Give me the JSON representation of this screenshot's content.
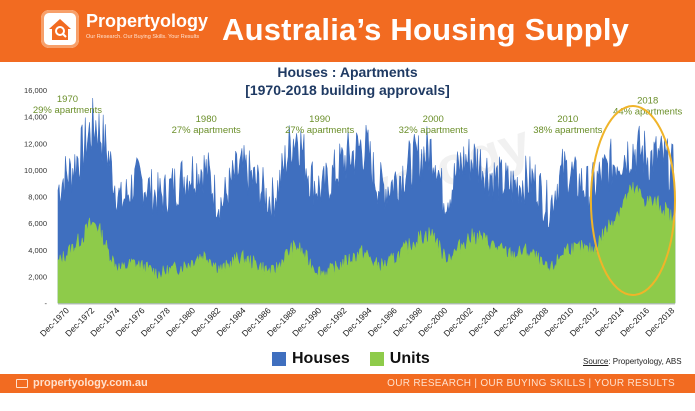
{
  "header": {
    "brand": "Propertyology",
    "tagline": "Our Research. Our Buying Skills. Your Results",
    "title": "Australia’s Housing Supply"
  },
  "footer": {
    "website": "propertyology.com.au",
    "slogan": "OUR RESEARCH | OUR BUYING SKILLS | YOUR RESULTS"
  },
  "source": {
    "label": "Source",
    "text": ": Propertyology, ABS"
  },
  "chart_data": {
    "type": "area",
    "title": "Houses : Apartments",
    "subtitle": "[1970-2018 building approvals]",
    "x_start": "1970-01",
    "x_end": "2018-12",
    "x_tick_labels": [
      "Dec-1970",
      "Dec-1972",
      "Dec-1974",
      "Dec-1976",
      "Dec-1978",
      "Dec-1980",
      "Dec-1982",
      "Dec-1984",
      "Dec-1986",
      "Dec-1988",
      "Dec-1990",
      "Dec-1992",
      "Dec-1994",
      "Dec-1996",
      "Dec-1998",
      "Dec-2000",
      "Dec-2002",
      "Dec-2004",
      "Dec-2006",
      "Dec-2008",
      "Dec-2010",
      "Dec-2012",
      "Dec-2014",
      "Dec-2016",
      "Dec-2018"
    ],
    "y_ticks": [
      0,
      2000,
      4000,
      6000,
      8000,
      10000,
      12000,
      14000,
      16000
    ],
    "y_tick_labels": [
      "-",
      "2,000",
      "4,000",
      "6,000",
      "8,000",
      "10,000",
      "12,000",
      "14,000",
      "16,000"
    ],
    "ylim": [
      0,
      16000
    ],
    "stacked": true,
    "legend_position": "bottom",
    "colors": {
      "houses": "#3f6fbf",
      "units": "#8ecb4a",
      "annotation": "#6b8f2a",
      "circle": "#f0b429"
    },
    "series": [
      {
        "name": "Houses",
        "points": [
          [
            "1970-01",
            8500
          ],
          [
            "1970-07",
            9500
          ],
          [
            "1971-01",
            9800
          ],
          [
            "1971-07",
            10800
          ],
          [
            "1972-01",
            11500
          ],
          [
            "1972-07",
            12800
          ],
          [
            "1973-01",
            13500
          ],
          [
            "1973-07",
            12500
          ],
          [
            "1974-01",
            11000
          ],
          [
            "1974-07",
            9000
          ],
          [
            "1975-01",
            7500
          ],
          [
            "1975-07",
            8200
          ],
          [
            "1976-01",
            9000
          ],
          [
            "1976-07",
            9200
          ],
          [
            "1977-01",
            8800
          ],
          [
            "1977-07",
            8300
          ],
          [
            "1978-01",
            8000
          ],
          [
            "1978-07",
            8200
          ],
          [
            "1979-01",
            8700
          ],
          [
            "1979-07",
            9000
          ],
          [
            "1980-01",
            9500
          ],
          [
            "1980-07",
            9800
          ],
          [
            "1981-01",
            10000
          ],
          [
            "1981-07",
            10200
          ],
          [
            "1982-01",
            9500
          ],
          [
            "1982-07",
            8000
          ],
          [
            "1983-01",
            7500
          ],
          [
            "1983-07",
            8500
          ],
          [
            "1984-01",
            9500
          ],
          [
            "1984-07",
            10000
          ],
          [
            "1985-01",
            9800
          ],
          [
            "1985-07",
            9200
          ],
          [
            "1986-01",
            8800
          ],
          [
            "1986-07",
            8000
          ],
          [
            "1987-01",
            7800
          ],
          [
            "1987-07",
            8800
          ],
          [
            "1988-01",
            10500
          ],
          [
            "1988-07",
            12200
          ],
          [
            "1989-01",
            12800
          ],
          [
            "1989-07",
            11000
          ],
          [
            "1990-01",
            9500
          ],
          [
            "1990-07",
            8800
          ],
          [
            "1991-01",
            8500
          ],
          [
            "1991-07",
            9200
          ],
          [
            "1992-01",
            9800
          ],
          [
            "1992-07",
            10500
          ],
          [
            "1993-01",
            11000
          ],
          [
            "1993-07",
            11200
          ],
          [
            "1994-01",
            11800
          ],
          [
            "1994-07",
            11500
          ],
          [
            "1995-01",
            9800
          ],
          [
            "1995-07",
            8800
          ],
          [
            "1996-01",
            8700
          ],
          [
            "1996-07",
            9000
          ],
          [
            "1997-01",
            9500
          ],
          [
            "1997-07",
            10000
          ],
          [
            "1998-01",
            10500
          ],
          [
            "1998-07",
            10800
          ],
          [
            "1999-01",
            11200
          ],
          [
            "1999-07",
            11500
          ],
          [
            "2000-01",
            11000
          ],
          [
            "2000-07",
            8000
          ],
          [
            "2001-01",
            8200
          ],
          [
            "2001-07",
            9500
          ],
          [
            "2002-01",
            10500
          ],
          [
            "2002-07",
            10800
          ],
          [
            "2003-01",
            10800
          ],
          [
            "2003-07",
            10500
          ],
          [
            "2004-01",
            10000
          ],
          [
            "2004-07",
            9500
          ],
          [
            "2005-01",
            9200
          ],
          [
            "2005-07",
            9000
          ],
          [
            "2006-01",
            8800
          ],
          [
            "2006-07",
            9000
          ],
          [
            "2007-01",
            9200
          ],
          [
            "2007-07",
            9300
          ],
          [
            "2008-01",
            9000
          ],
          [
            "2008-07",
            7800
          ],
          [
            "2009-01",
            7200
          ],
          [
            "2009-07",
            8800
          ],
          [
            "2010-01",
            9800
          ],
          [
            "2010-07",
            10000
          ],
          [
            "2011-01",
            9200
          ],
          [
            "2011-07",
            9000
          ],
          [
            "2012-01",
            8600
          ],
          [
            "2012-07",
            8800
          ],
          [
            "2013-01",
            9500
          ],
          [
            "2013-07",
            10000
          ],
          [
            "2014-01",
            10500
          ],
          [
            "2014-07",
            11000
          ],
          [
            "2015-01",
            11200
          ],
          [
            "2015-07",
            11600
          ],
          [
            "2016-01",
            11400
          ],
          [
            "2016-07",
            11200
          ],
          [
            "2017-01",
            10800
          ],
          [
            "2017-07",
            11000
          ],
          [
            "2018-01",
            10800
          ],
          [
            "2018-07",
            10200
          ],
          [
            "2018-12",
            9800
          ]
        ]
      },
      {
        "name": "Units",
        "points": [
          [
            "1970-01",
            3000
          ],
          [
            "1970-07",
            3500
          ],
          [
            "1971-01",
            4000
          ],
          [
            "1971-07",
            4500
          ],
          [
            "1972-01",
            5000
          ],
          [
            "1972-07",
            5800
          ],
          [
            "1973-01",
            6000
          ],
          [
            "1973-07",
            5000
          ],
          [
            "1974-01",
            3800
          ],
          [
            "1974-07",
            3000
          ],
          [
            "1975-01",
            2500
          ],
          [
            "1975-07",
            2800
          ],
          [
            "1976-01",
            3000
          ],
          [
            "1976-07",
            2800
          ],
          [
            "1977-01",
            2600
          ],
          [
            "1977-07",
            2400
          ],
          [
            "1978-01",
            2200
          ],
          [
            "1978-07",
            2300
          ],
          [
            "1979-01",
            2500
          ],
          [
            "1979-07",
            2600
          ],
          [
            "1980-01",
            2800
          ],
          [
            "1980-07",
            3000
          ],
          [
            "1981-01",
            3400
          ],
          [
            "1981-07",
            3600
          ],
          [
            "1982-01",
            3400
          ],
          [
            "1982-07",
            2800
          ],
          [
            "1983-01",
            2500
          ],
          [
            "1983-07",
            2800
          ],
          [
            "1984-01",
            3200
          ],
          [
            "1984-07",
            3400
          ],
          [
            "1985-01",
            3200
          ],
          [
            "1985-07",
            3000
          ],
          [
            "1986-01",
            2800
          ],
          [
            "1986-07",
            2500
          ],
          [
            "1987-01",
            2300
          ],
          [
            "1987-07",
            2800
          ],
          [
            "1988-01",
            3500
          ],
          [
            "1988-07",
            4000
          ],
          [
            "1989-01",
            4200
          ],
          [
            "1989-07",
            3600
          ],
          [
            "1990-01",
            3000
          ],
          [
            "1990-07",
            2500
          ],
          [
            "1991-01",
            2300
          ],
          [
            "1991-07",
            2400
          ],
          [
            "1992-01",
            2600
          ],
          [
            "1992-07",
            2900
          ],
          [
            "1993-01",
            3200
          ],
          [
            "1993-07",
            3500
          ],
          [
            "1994-01",
            3800
          ],
          [
            "1994-07",
            3600
          ],
          [
            "1995-01",
            3000
          ],
          [
            "1995-07",
            2800
          ],
          [
            "1996-01",
            2900
          ],
          [
            "1996-07",
            3200
          ],
          [
            "1997-01",
            3600
          ],
          [
            "1997-07",
            4000
          ],
          [
            "1998-01",
            4400
          ],
          [
            "1998-07",
            4800
          ],
          [
            "1999-01",
            5000
          ],
          [
            "1999-07",
            5200
          ],
          [
            "2000-01",
            4800
          ],
          [
            "2000-07",
            3500
          ],
          [
            "2001-01",
            3500
          ],
          [
            "2001-07",
            3800
          ],
          [
            "2002-01",
            4400
          ],
          [
            "2002-07",
            4800
          ],
          [
            "2003-01",
            5000
          ],
          [
            "2003-07",
            4900
          ],
          [
            "2004-01",
            4600
          ],
          [
            "2004-07",
            4300
          ],
          [
            "2005-01",
            4000
          ],
          [
            "2005-07",
            3800
          ],
          [
            "2006-01",
            3600
          ],
          [
            "2006-07",
            3700
          ],
          [
            "2007-01",
            3900
          ],
          [
            "2007-07",
            3700
          ],
          [
            "2008-01",
            3300
          ],
          [
            "2008-07",
            2700
          ],
          [
            "2009-01",
            2400
          ],
          [
            "2009-07",
            3000
          ],
          [
            "2010-01",
            3800
          ],
          [
            "2010-07",
            4200
          ],
          [
            "2011-01",
            4000
          ],
          [
            "2011-07",
            4100
          ],
          [
            "2012-01",
            3900
          ],
          [
            "2012-07",
            4000
          ],
          [
            "2013-01",
            4800
          ],
          [
            "2013-07",
            5500
          ],
          [
            "2014-01",
            6300
          ],
          [
            "2014-07",
            7000
          ],
          [
            "2015-01",
            7800
          ],
          [
            "2015-07",
            8400
          ],
          [
            "2016-01",
            8200
          ],
          [
            "2016-07",
            7800
          ],
          [
            "2017-01",
            7500
          ],
          [
            "2017-07",
            7400
          ],
          [
            "2018-01",
            7100
          ],
          [
            "2018-07",
            6500
          ],
          [
            "2018-12",
            6000
          ]
        ]
      }
    ],
    "annotations": [
      {
        "year": "1970",
        "text": "29% apartments",
        "x": "1970-10",
        "y": 15100
      },
      {
        "year": "1980",
        "text": "27% apartments",
        "x": "1981-10",
        "y": 13600
      },
      {
        "year": "1990",
        "text": "27% apartments",
        "x": "1990-10",
        "y": 13600
      },
      {
        "year": "2000",
        "text": "32% apartments",
        "x": "1999-10",
        "y": 13600
      },
      {
        "year": "2010",
        "text": "38% apartments",
        "x": "2010-06",
        "y": 13600
      },
      {
        "year": "2018",
        "text": "44% apartments",
        "x": "2016-10",
        "y": 15000
      }
    ],
    "highlight": {
      "shape": "ellipse",
      "x_from": "2012-04",
      "x_to": "2018-12",
      "y_from": 600,
      "y_to": 14800
    }
  }
}
